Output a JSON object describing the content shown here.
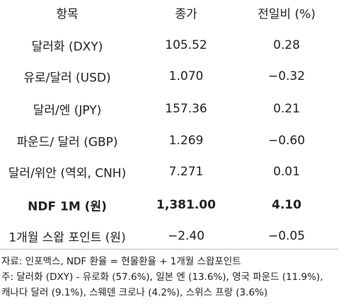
{
  "table": {
    "header": [
      "항목",
      "종가",
      "전일비 (%)"
    ],
    "rows": [
      [
        "달러화 (DXY)",
        "105.52",
        "0.28"
      ],
      [
        "유로/달러 (USD)",
        "1.070",
        "−0.32"
      ],
      [
        "달러/엔 (JPY)",
        "157.36",
        "0.21"
      ],
      [
        "파운드/ 달러 (GBP)",
        "1.269",
        "−0.60"
      ],
      [
        "달러/위안 (역외, CNH)",
        "7.271",
        "0.01"
      ],
      [
        "NDF 1M (원)",
        "1,381.00",
        "4.10"
      ],
      [
        "1개월 스왑 포인트 (원)",
        "−2.40",
        "−0.05"
      ]
    ]
  },
  "notes": [
    "자료: 인포맥스, NDF 환율 = 현물환율 + 1개월 스왑포인트",
    "주: 달러화 (DXY) - 유로화 (57.6%), 일본 엔 (13.6%), 영국 파운드 (11.9%),",
    "캐나다 달러 (9.1%), 스웨덴 크로나 (4.2%), 스위스 프랑 (3.6%)"
  ]
}
